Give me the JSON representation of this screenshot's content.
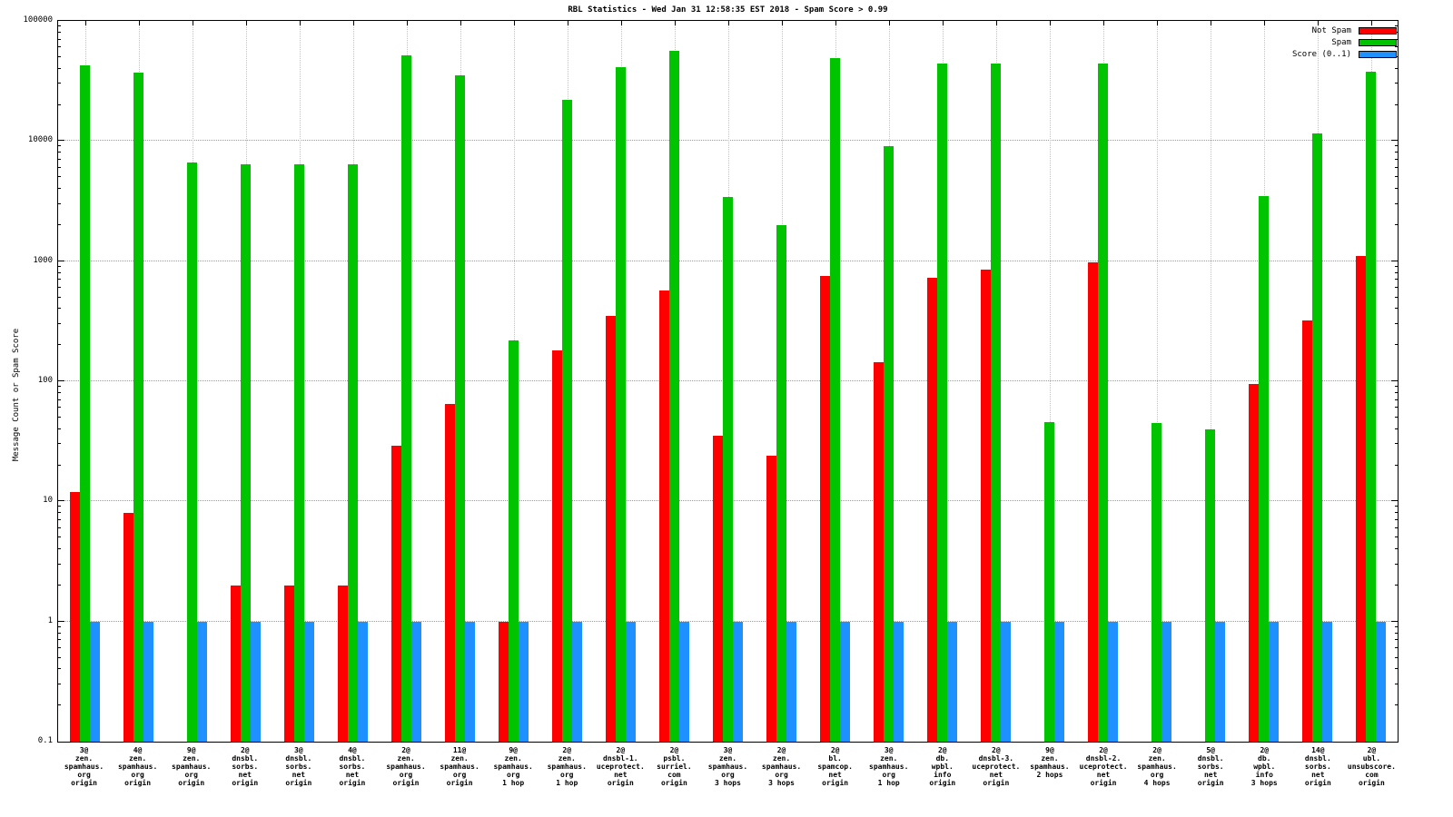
{
  "chart_data": {
    "type": "bar",
    "title": "RBL Statistics - Wed Jan 31 12:58:35 EST 2018 - Spam Score > 0.99",
    "ylabel": "Message Count or Spam Score",
    "y_scale": "log",
    "ylim": [
      0.1,
      100000
    ],
    "ytick_labels": [
      "100000",
      "10000",
      "1000",
      "100",
      "10",
      "1",
      "0.1"
    ],
    "grid": true,
    "legend_position": "top-right",
    "categories": [
      [
        "3@",
        "zen.",
        "spamhaus.",
        "org",
        "origin"
      ],
      [
        "4@",
        "zen.",
        "spamhaus.",
        "org",
        "origin"
      ],
      [
        "9@",
        "zen.",
        "spamhaus.",
        "org",
        "origin"
      ],
      [
        "2@",
        "dnsbl.",
        "sorbs.",
        "net",
        "origin"
      ],
      [
        "3@",
        "dnsbl.",
        "sorbs.",
        "net",
        "origin"
      ],
      [
        "4@",
        "dnsbl.",
        "sorbs.",
        "net",
        "origin"
      ],
      [
        "2@",
        "zen.",
        "spamhaus.",
        "org",
        "origin"
      ],
      [
        "11@",
        "zen.",
        "spamhaus.",
        "org",
        "origin"
      ],
      [
        "9@",
        "zen.",
        "spamhaus.",
        "org",
        "1 hop"
      ],
      [
        "2@",
        "zen.",
        "spamhaus.",
        "org",
        "1 hop"
      ],
      [
        "2@",
        "dnsbl-1.",
        "uceprotect.",
        "net",
        "origin"
      ],
      [
        "2@",
        "psbl.",
        "surriel.",
        "com",
        "origin"
      ],
      [
        "3@",
        "zen.",
        "spamhaus.",
        "org",
        "3 hops"
      ],
      [
        "2@",
        "zen.",
        "spamhaus.",
        "org",
        "3 hops"
      ],
      [
        "2@",
        "bl.",
        "spamcop.",
        "net",
        "origin"
      ],
      [
        "3@",
        "zen.",
        "spamhaus.",
        "org",
        "1 hop"
      ],
      [
        "2@",
        "db.",
        "wpbl.",
        "info",
        "origin"
      ],
      [
        "2@",
        "dnsbl-3.",
        "uceprotect.",
        "net",
        "origin"
      ],
      [
        "9@",
        "zen.",
        "spamhaus.",
        "2 hops"
      ],
      [
        "2@",
        "dnsbl-2.",
        "uceprotect.",
        "net",
        "origin"
      ],
      [
        "2@",
        "zen.",
        "spamhaus.",
        "org",
        "4 hops"
      ],
      [
        "5@",
        "dnsbl.",
        "sorbs.",
        "net",
        "origin"
      ],
      [
        "2@",
        "db.",
        "wpbl.",
        "info",
        "3 hops"
      ],
      [
        "14@",
        "dnsbl.",
        "sorbs.",
        "net",
        "origin"
      ],
      [
        "2@",
        "ubl.",
        "unsubscore.",
        "com",
        "origin"
      ]
    ],
    "series": [
      {
        "name": "Not Spam",
        "color": "#ff0000",
        "values": [
          12,
          8,
          0,
          2,
          2,
          2,
          29,
          65,
          1,
          180,
          350,
          570,
          35,
          24,
          750,
          145,
          730,
          850,
          0,
          970,
          0,
          0,
          95,
          320,
          1100
        ]
      },
      {
        "name": "Spam",
        "color": "#00c400",
        "values": [
          43000,
          37000,
          6600,
          6400,
          6400,
          6400,
          52000,
          35000,
          220,
          22000,
          41000,
          56000,
          3400,
          2000,
          49000,
          9000,
          44000,
          44000,
          46,
          44000,
          45,
          40,
          3500,
          11500,
          38000
        ]
      },
      {
        "name": "Score (0..1)",
        "color": "#1e90ff",
        "values": [
          1,
          1,
          1,
          1,
          1,
          1,
          1,
          1,
          1,
          1,
          1,
          1,
          1,
          1,
          1,
          1,
          1,
          1,
          1,
          1,
          1,
          1,
          1,
          1,
          1
        ]
      }
    ]
  }
}
